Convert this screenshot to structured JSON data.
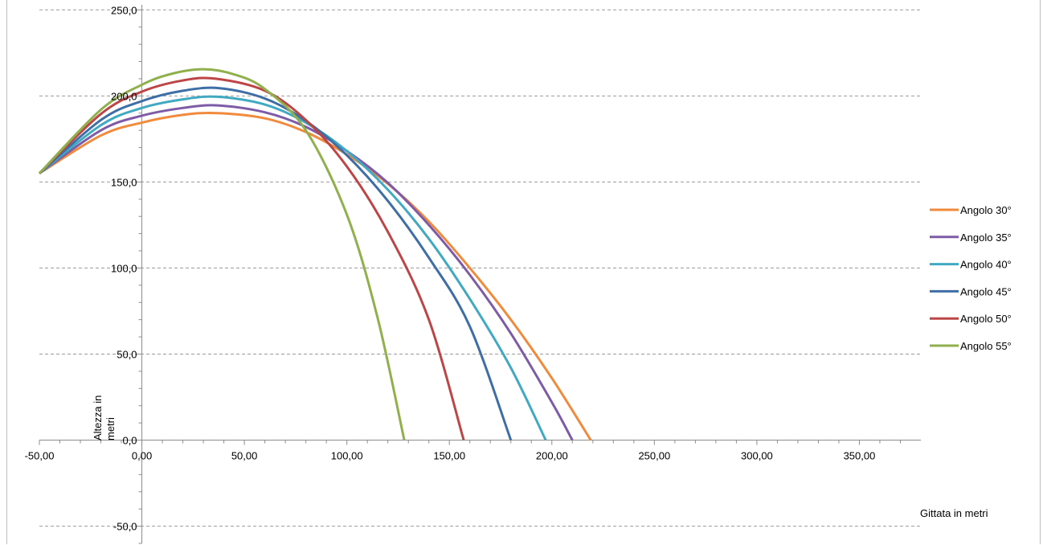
{
  "chart_data": {
    "type": "line",
    "title": "",
    "xlabel": "Gittata in metri",
    "ylabel": "Altezza in metri",
    "xlim": [
      -50,
      380
    ],
    "ylim": [
      -60,
      252
    ],
    "x_ticks": [
      -50,
      0,
      50,
      100,
      150,
      200,
      250,
      300,
      350
    ],
    "x_tick_labels": [
      "-50,00",
      "0,00",
      "50,00",
      "100,00",
      "150,00",
      "200,00",
      "250,00",
      "300,00",
      "350,00"
    ],
    "y_ticks": [
      250,
      200,
      150,
      100,
      50,
      0,
      -50
    ],
    "y_tick_labels": [
      "250,0",
      "200,0",
      "150,0",
      "100,0",
      "50,0",
      "0,0",
      "-50,0"
    ],
    "grid": "horizontal-dashed",
    "legend": "right",
    "series": [
      {
        "name": "Angolo 30°",
        "color": "#f08a3c",
        "x": [
          -50,
          -20,
          0,
          20,
          37,
          60,
          80,
          100,
          120,
          140,
          160,
          180,
          200,
          219
        ],
        "y": [
          155,
          177,
          184.5,
          189,
          190,
          187,
          179,
          166,
          149,
          127,
          100,
          70,
          36,
          0
        ]
      },
      {
        "name": "Angolo 35°",
        "color": "#7e5ba6",
        "x": [
          -50,
          -20,
          0,
          20,
          37,
          60,
          80,
          100,
          120,
          140,
          160,
          180,
          200,
          210
        ],
        "y": [
          155,
          180,
          188.5,
          193,
          194.5,
          190.5,
          182,
          168,
          149.5,
          125,
          96,
          62,
          22,
          0
        ]
      },
      {
        "name": "Angolo 40°",
        "color": "#41a9c2",
        "x": [
          -50,
          -20,
          0,
          20,
          37,
          60,
          80,
          100,
          120,
          140,
          160,
          180,
          197
        ],
        "y": [
          155,
          183,
          193,
          198,
          199.5,
          195,
          184.5,
          168,
          145.5,
          117,
          82,
          42,
          0
        ]
      },
      {
        "name": "Angolo 45°",
        "color": "#3e6ea5",
        "x": [
          -50,
          -20,
          0,
          20,
          38,
          60,
          80,
          100,
          120,
          140,
          160,
          180
        ],
        "y": [
          155,
          186,
          197,
          203,
          204.5,
          198.5,
          185.5,
          165.5,
          139,
          106,
          66,
          0
        ]
      },
      {
        "name": "Angolo 50°",
        "color": "#bd4545",
        "x": [
          -50,
          -20,
          0,
          20,
          36,
          60,
          80,
          100,
          120,
          140,
          157
        ],
        "y": [
          155,
          189.5,
          202.5,
          209,
          210,
          203,
          186,
          159,
          121,
          70,
          0
        ]
      },
      {
        "name": "Angolo 55°",
        "color": "#8fb04c",
        "x": [
          -50,
          -20,
          0,
          15,
          30,
          45,
          60,
          80,
          100,
          115,
          128
        ],
        "y": [
          155,
          192,
          206.5,
          213,
          215.5,
          212.5,
          204,
          180,
          131,
          71,
          0
        ]
      }
    ]
  }
}
